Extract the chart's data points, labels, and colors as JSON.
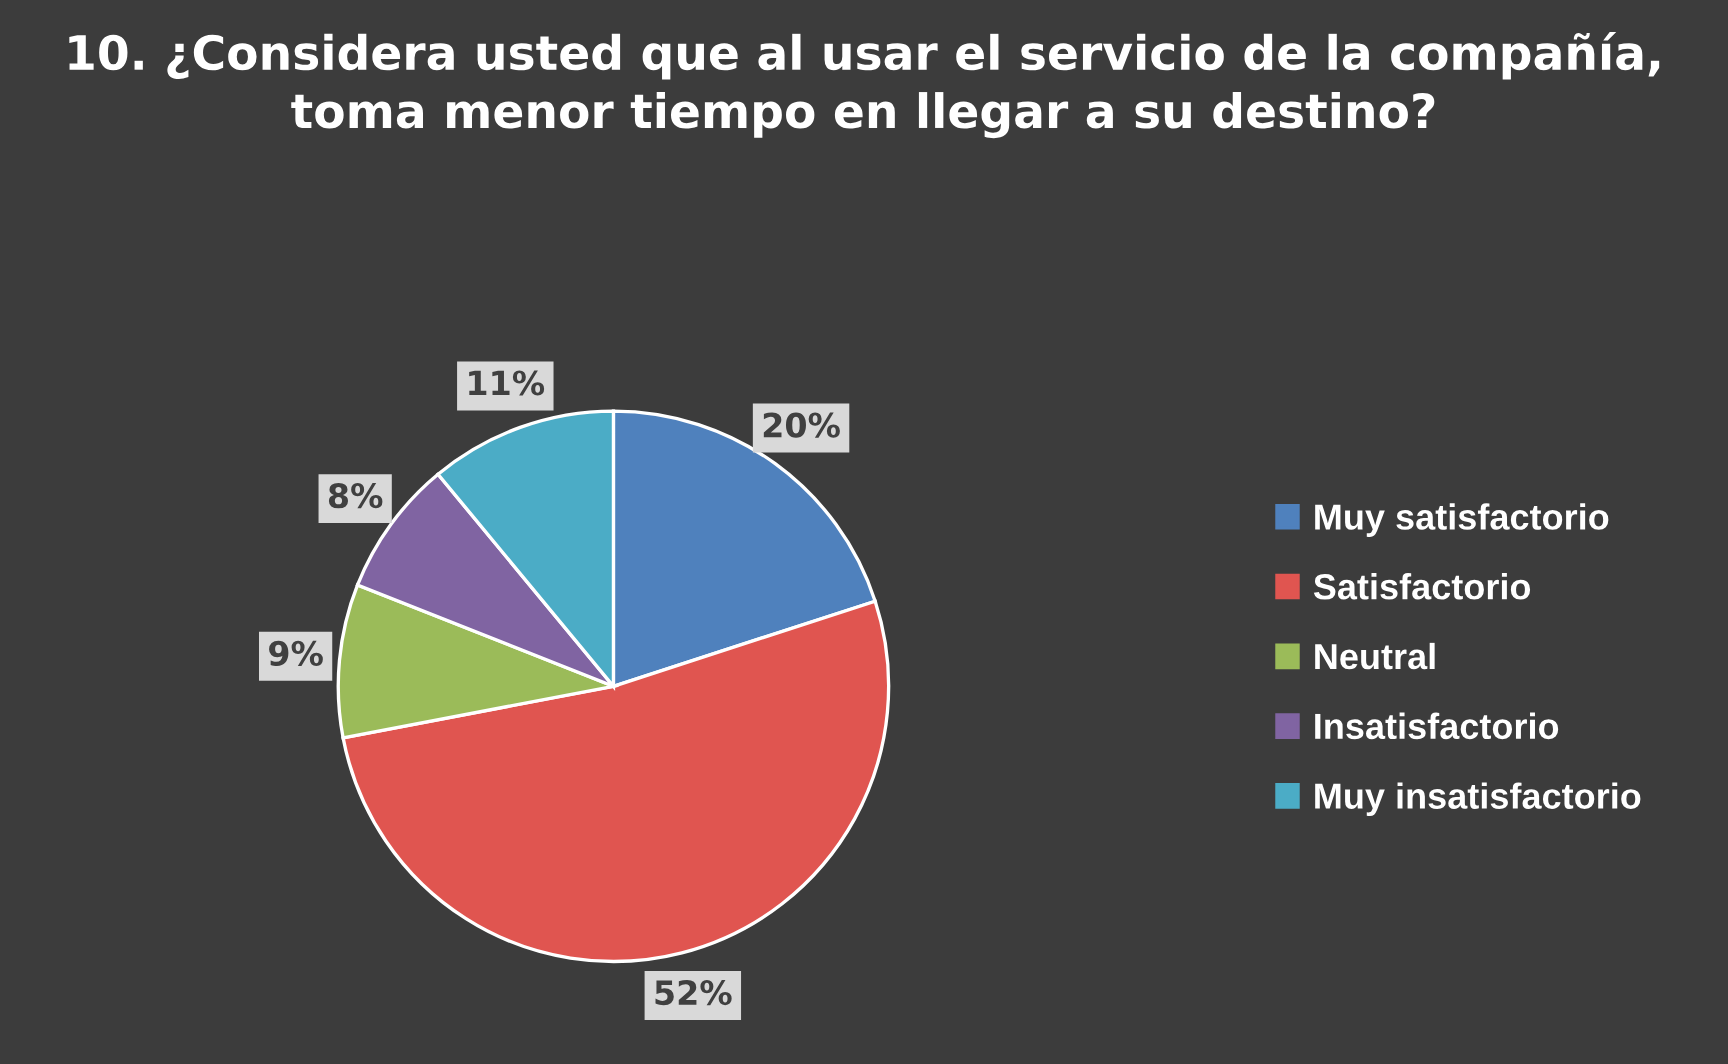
{
  "chart_data": {
    "type": "pie",
    "title": "10. ¿Considera usted que al usar el servicio de la compañía, toma menor tiempo en llegar a su destino?",
    "categories": [
      "Muy satisfactorio",
      "Satisfactorio",
      "Neutral",
      "Insatisfactorio",
      "Muy insatisfactorio"
    ],
    "values": [
      20,
      52,
      9,
      8,
      11
    ],
    "colors": [
      "#4f81bd",
      "#e05550",
      "#9bbb59",
      "#8064a2",
      "#4bacc6"
    ],
    "value_labels": [
      "20%",
      "52%",
      "9%",
      "8%",
      "11%"
    ],
    "legend": "right"
  }
}
